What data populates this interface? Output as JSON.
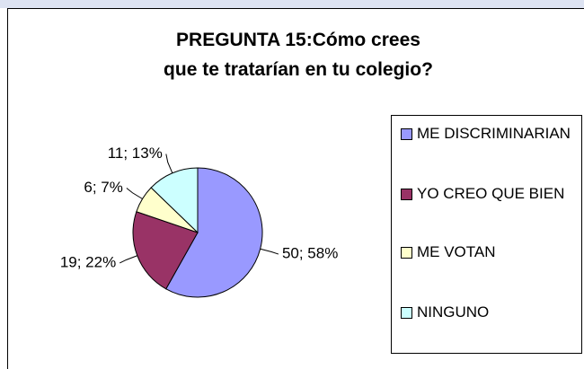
{
  "chart_data": {
    "type": "pie",
    "title": "PREGUNTA 15:Cómo crees que te tratarían en tu colegio?",
    "categories": [
      "ME DISCRIMINARIAN",
      "YO CREO QUE BIEN",
      "ME VOTAN",
      "NINGUNO"
    ],
    "values": [
      50,
      19,
      6,
      11
    ],
    "value_labels": [
      "50; 58%",
      "19; 22%",
      "6; 7%",
      "11; 13%"
    ],
    "colors": [
      "#9999ff",
      "#993366",
      "#ffffcc",
      "#ccffff"
    ],
    "legend": "right"
  }
}
